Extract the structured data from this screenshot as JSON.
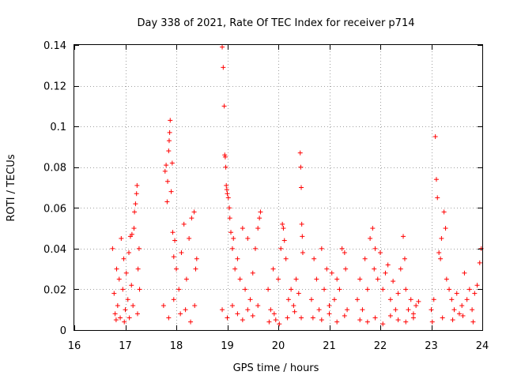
{
  "chart_data": {
    "type": "scatter",
    "title": "Day 338 of 2021, Rate Of TEC Index for receiver p714",
    "xlabel": "GPS time / hours",
    "ylabel": "ROTI / TECUs",
    "xlim": [
      16,
      24
    ],
    "ylim": [
      0,
      0.14
    ],
    "xticks": [
      "16",
      "17",
      "18",
      "19",
      "20",
      "21",
      "22",
      "23",
      "24"
    ],
    "yticks": [
      "0",
      "0.02",
      "0.04",
      "0.06",
      "0.08",
      "0.1",
      "0.12",
      "0.14"
    ],
    "grid": true,
    "marker": "+",
    "color": "#ff0000",
    "series": [
      {
        "name": "ROTI",
        "points": [
          [
            16.75,
            0.04
          ],
          [
            16.78,
            0.018
          ],
          [
            16.8,
            0.008
          ],
          [
            16.83,
            0.03
          ],
          [
            16.85,
            0.012
          ],
          [
            16.88,
            0.025
          ],
          [
            16.9,
            0.006
          ],
          [
            16.92,
            0.045
          ],
          [
            16.95,
            0.02
          ],
          [
            16.97,
            0.035
          ],
          [
            17.0,
            0.01
          ],
          [
            17.02,
            0.028
          ],
          [
            17.05,
            0.015
          ],
          [
            17.07,
            0.038
          ],
          [
            17.1,
            0.046
          ],
          [
            17.12,
            0.022
          ],
          [
            17.13,
            0.047
          ],
          [
            17.15,
            0.012
          ],
          [
            17.17,
            0.05
          ],
          [
            17.18,
            0.058
          ],
          [
            17.2,
            0.062
          ],
          [
            17.22,
            0.067
          ],
          [
            17.23,
            0.071
          ],
          [
            17.25,
            0.03
          ],
          [
            17.27,
            0.04
          ],
          [
            17.28,
            0.02
          ],
          [
            16.82,
            0.005
          ],
          [
            16.98,
            0.004
          ],
          [
            17.08,
            0.006
          ],
          [
            17.24,
            0.008
          ],
          [
            17.78,
            0.078
          ],
          [
            17.8,
            0.081
          ],
          [
            17.82,
            0.063
          ],
          [
            17.83,
            0.073
          ],
          [
            17.85,
            0.088
          ],
          [
            17.86,
            0.093
          ],
          [
            17.87,
            0.097
          ],
          [
            17.88,
            0.103
          ],
          [
            17.9,
            0.068
          ],
          [
            17.92,
            0.082
          ],
          [
            17.93,
            0.048
          ],
          [
            17.95,
            0.036
          ],
          [
            17.97,
            0.044
          ],
          [
            18.0,
            0.03
          ],
          [
            18.05,
            0.02
          ],
          [
            18.1,
            0.038
          ],
          [
            18.15,
            0.052
          ],
          [
            18.2,
            0.025
          ],
          [
            18.25,
            0.045
          ],
          [
            18.3,
            0.055
          ],
          [
            18.35,
            0.058
          ],
          [
            18.38,
            0.03
          ],
          [
            18.4,
            0.035
          ],
          [
            17.75,
            0.012
          ],
          [
            17.85,
            0.006
          ],
          [
            17.95,
            0.015
          ],
          [
            18.08,
            0.008
          ],
          [
            18.18,
            0.01
          ],
          [
            18.28,
            0.004
          ],
          [
            18.36,
            0.012
          ],
          [
            18.9,
            0.139
          ],
          [
            18.92,
            0.129
          ],
          [
            18.94,
            0.11
          ],
          [
            18.95,
            0.086
          ],
          [
            18.96,
            0.085
          ],
          [
            18.97,
            0.08
          ],
          [
            18.98,
            0.071
          ],
          [
            18.99,
            0.069
          ],
          [
            19.0,
            0.067
          ],
          [
            19.02,
            0.065
          ],
          [
            19.04,
            0.06
          ],
          [
            19.05,
            0.055
          ],
          [
            19.07,
            0.048
          ],
          [
            19.1,
            0.04
          ],
          [
            19.12,
            0.045
          ],
          [
            19.15,
            0.03
          ],
          [
            19.2,
            0.035
          ],
          [
            19.25,
            0.025
          ],
          [
            19.3,
            0.05
          ],
          [
            19.35,
            0.02
          ],
          [
            19.4,
            0.045
          ],
          [
            19.45,
            0.015
          ],
          [
            19.5,
            0.028
          ],
          [
            19.55,
            0.04
          ],
          [
            19.6,
            0.05
          ],
          [
            19.63,
            0.055
          ],
          [
            19.65,
            0.058
          ],
          [
            18.9,
            0.01
          ],
          [
            19.0,
            0.006
          ],
          [
            19.1,
            0.012
          ],
          [
            19.2,
            0.008
          ],
          [
            19.3,
            0.005
          ],
          [
            19.4,
            0.01
          ],
          [
            19.5,
            0.007
          ],
          [
            19.6,
            0.012
          ],
          [
            19.8,
            0.02
          ],
          [
            19.85,
            0.01
          ],
          [
            19.9,
            0.03
          ],
          [
            19.95,
            0.005
          ],
          [
            20.0,
            0.025
          ],
          [
            20.05,
            0.04
          ],
          [
            20.08,
            0.052
          ],
          [
            20.1,
            0.05
          ],
          [
            20.12,
            0.044
          ],
          [
            20.15,
            0.035
          ],
          [
            20.2,
            0.015
          ],
          [
            20.25,
            0.02
          ],
          [
            20.3,
            0.012
          ],
          [
            20.35,
            0.025
          ],
          [
            20.4,
            0.018
          ],
          [
            20.43,
            0.087
          ],
          [
            20.44,
            0.08
          ],
          [
            20.45,
            0.07
          ],
          [
            20.46,
            0.052
          ],
          [
            20.47,
            0.046
          ],
          [
            20.48,
            0.038
          ],
          [
            19.82,
            0.004
          ],
          [
            19.92,
            0.008
          ],
          [
            20.02,
            0.003
          ],
          [
            20.18,
            0.006
          ],
          [
            20.32,
            0.009
          ],
          [
            20.45,
            0.006
          ],
          [
            20.65,
            0.015
          ],
          [
            20.7,
            0.035
          ],
          [
            20.75,
            0.025
          ],
          [
            20.8,
            0.01
          ],
          [
            20.85,
            0.04
          ],
          [
            20.9,
            0.02
          ],
          [
            20.95,
            0.03
          ],
          [
            21.0,
            0.012
          ],
          [
            21.05,
            0.028
          ],
          [
            21.1,
            0.015
          ],
          [
            21.15,
            0.025
          ],
          [
            21.2,
            0.02
          ],
          [
            21.25,
            0.04
          ],
          [
            21.3,
            0.038
          ],
          [
            21.32,
            0.03
          ],
          [
            21.35,
            0.01
          ],
          [
            20.68,
            0.006
          ],
          [
            20.85,
            0.005
          ],
          [
            21.0,
            0.008
          ],
          [
            21.15,
            0.004
          ],
          [
            21.3,
            0.007
          ],
          [
            21.55,
            0.015
          ],
          [
            21.6,
            0.025
          ],
          [
            21.65,
            0.01
          ],
          [
            21.7,
            0.035
          ],
          [
            21.75,
            0.02
          ],
          [
            21.8,
            0.045
          ],
          [
            21.85,
            0.05
          ],
          [
            21.88,
            0.03
          ],
          [
            21.9,
            0.04
          ],
          [
            21.95,
            0.025
          ],
          [
            22.0,
            0.038
          ],
          [
            22.05,
            0.02
          ],
          [
            22.1,
            0.028
          ],
          [
            22.15,
            0.032
          ],
          [
            22.2,
            0.015
          ],
          [
            22.25,
            0.024
          ],
          [
            22.3,
            0.01
          ],
          [
            22.35,
            0.018
          ],
          [
            22.4,
            0.03
          ],
          [
            22.45,
            0.046
          ],
          [
            22.48,
            0.035
          ],
          [
            22.5,
            0.02
          ],
          [
            22.55,
            0.01
          ],
          [
            22.6,
            0.015
          ],
          [
            22.65,
            0.008
          ],
          [
            22.7,
            0.012
          ],
          [
            22.75,
            0.014
          ],
          [
            21.6,
            0.005
          ],
          [
            21.75,
            0.004
          ],
          [
            21.9,
            0.006
          ],
          [
            22.05,
            0.003
          ],
          [
            22.2,
            0.007
          ],
          [
            22.35,
            0.005
          ],
          [
            22.5,
            0.004
          ],
          [
            22.65,
            0.006
          ],
          [
            23.0,
            0.01
          ],
          [
            23.05,
            0.015
          ],
          [
            23.08,
            0.095
          ],
          [
            23.1,
            0.074
          ],
          [
            23.12,
            0.065
          ],
          [
            23.15,
            0.038
          ],
          [
            23.18,
            0.035
          ],
          [
            23.2,
            0.045
          ],
          [
            23.25,
            0.058
          ],
          [
            23.28,
            0.05
          ],
          [
            23.3,
            0.025
          ],
          [
            23.35,
            0.02
          ],
          [
            23.4,
            0.015
          ],
          [
            23.45,
            0.01
          ],
          [
            23.5,
            0.018
          ],
          [
            23.55,
            0.008
          ],
          [
            23.6,
            0.012
          ],
          [
            23.65,
            0.028
          ],
          [
            23.7,
            0.015
          ],
          [
            23.75,
            0.02
          ],
          [
            23.8,
            0.01
          ],
          [
            23.85,
            0.018
          ],
          [
            23.9,
            0.022
          ],
          [
            23.95,
            0.033
          ],
          [
            23.98,
            0.04
          ],
          [
            23.02,
            0.004
          ],
          [
            23.22,
            0.006
          ],
          [
            23.42,
            0.005
          ],
          [
            23.62,
            0.007
          ],
          [
            23.82,
            0.004
          ]
        ]
      }
    ]
  }
}
